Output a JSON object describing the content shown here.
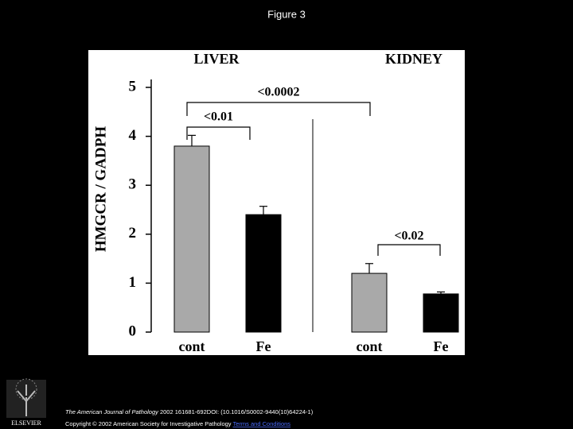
{
  "title": "Figure 3",
  "chart_data": {
    "type": "bar",
    "groups": [
      "LIVER",
      "KIDNEY"
    ],
    "categories": [
      "cont",
      "Fe",
      "cont",
      "Fe"
    ],
    "values": [
      3.8,
      2.4,
      1.2,
      0.78
    ],
    "errors": [
      0.22,
      0.17,
      0.2,
      0.04
    ],
    "colors": [
      "#a9a9a9",
      "#000000",
      "#a9a9a9",
      "#000000"
    ],
    "y_label": "HMGCR / GADPH",
    "ylim": [
      0,
      5
    ],
    "yticks": [
      0,
      1,
      2,
      3,
      4,
      5
    ],
    "annotations": [
      "<0.01",
      "<0.0002",
      "<0.02"
    ]
  },
  "footer": {
    "journal": "The American Journal of Pathology",
    "citation": "2002 161681-692DOI: (10.1016/S0002-9440(10)64224-1)",
    "copyright": "Copyright © 2002 American Society for Investigative Pathology",
    "link": "Terms and Conditions"
  },
  "logo": "ELSEVIER"
}
